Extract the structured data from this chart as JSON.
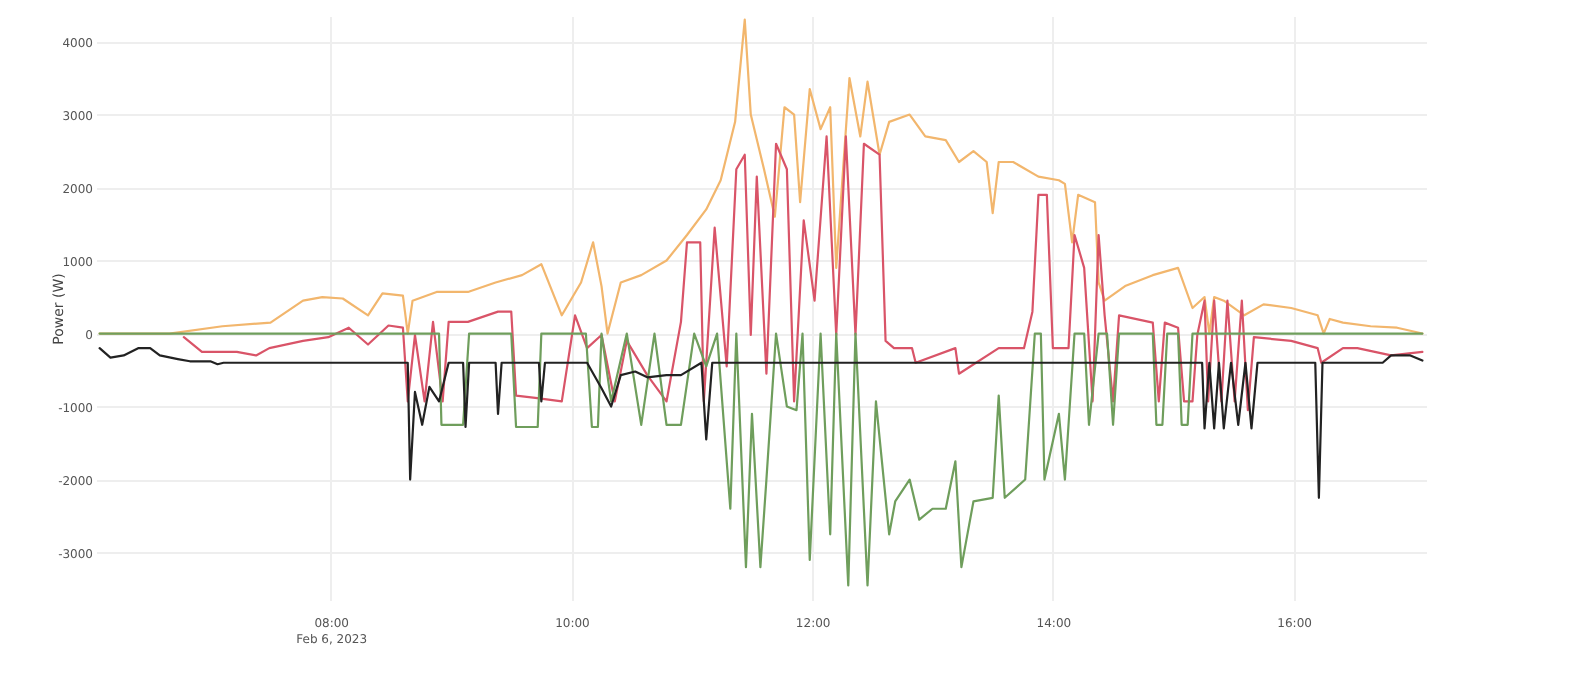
{
  "chart_data": {
    "type": "line",
    "ylabel": "Power (W)",
    "grid": true,
    "legend": false,
    "marker": "none",
    "line_style": "solid",
    "xlim": [
      6.05,
      17.1
    ],
    "xticks": [
      {
        "value": 8,
        "label": "08:00\nFeb 6, 2023"
      },
      {
        "value": 10,
        "label": "10:00"
      },
      {
        "value": 12,
        "label": "12:00"
      },
      {
        "value": 14,
        "label": "14:00"
      },
      {
        "value": 16,
        "label": "16:00"
      }
    ],
    "ylim": [
      -3650,
      4350
    ],
    "yticks": [
      -3000,
      -2000,
      -1000,
      0,
      1000,
      2000,
      3000,
      4000
    ],
    "series": [
      {
        "color": "#f2b66d",
        "x": [
          6.08,
          6.66,
          7.1,
          7.5,
          7.77,
          7.93,
          8.1,
          8.31,
          8.43,
          8.6,
          8.64,
          8.68,
          8.88,
          9.14,
          9.37,
          9.59,
          9.75,
          9.92,
          10.08,
          10.18,
          10.25,
          10.3,
          10.41,
          10.58,
          10.79,
          10.96,
          11.12,
          11.24,
          11.36,
          11.44,
          11.49,
          11.6,
          11.69,
          11.77,
          11.85,
          11.9,
          11.98,
          12.07,
          12.15,
          12.2,
          12.31,
          12.4,
          12.46,
          12.56,
          12.64,
          12.81,
          12.94,
          13.11,
          13.22,
          13.34,
          13.45,
          13.5,
          13.55,
          13.67,
          13.88,
          14.05,
          14.1,
          14.16,
          14.21,
          14.35,
          14.38,
          14.43,
          14.6,
          14.83,
          15.04,
          15.16,
          15.26,
          15.3,
          15.34,
          15.42,
          15.59,
          15.75,
          15.98,
          16.2,
          16.25,
          16.3,
          16.41,
          16.64,
          16.86,
          17.07
        ],
        "values": [
          0,
          0,
          100,
          150,
          450,
          500,
          480,
          250,
          550,
          520,
          0,
          450,
          570,
          570,
          700,
          800,
          950,
          250,
          700,
          1250,
          650,
          0,
          700,
          800,
          1000,
          1350,
          1700,
          2100,
          2900,
          4300,
          3000,
          2250,
          1600,
          3100,
          3000,
          1800,
          3350,
          2800,
          3100,
          900,
          3500,
          2700,
          3450,
          2450,
          2900,
          3000,
          2700,
          2650,
          2350,
          2500,
          2350,
          1650,
          2350,
          2350,
          2150,
          2100,
          2050,
          1250,
          1900,
          1800,
          700,
          450,
          650,
          800,
          900,
          350,
          500,
          0,
          500,
          450,
          250,
          400,
          350,
          250,
          0,
          200,
          150,
          100,
          80,
          0
        ]
      },
      {
        "color": "#d95468",
        "x": [
          6.78,
          6.93,
          7.22,
          7.38,
          7.49,
          7.77,
          7.98,
          8.15,
          8.31,
          8.48,
          8.6,
          8.64,
          8.7,
          8.78,
          8.85,
          8.93,
          8.98,
          9.14,
          9.39,
          9.5,
          9.54,
          9.7,
          9.92,
          10.03,
          10.13,
          10.25,
          10.36,
          10.46,
          10.63,
          10.79,
          10.91,
          10.96,
          11.07,
          11.1,
          11.19,
          11.29,
          11.37,
          11.44,
          11.49,
          11.54,
          11.62,
          11.7,
          11.79,
          11.85,
          11.93,
          12.02,
          12.12,
          12.2,
          12.28,
          12.36,
          12.43,
          12.56,
          12.61,
          12.68,
          12.83,
          12.86,
          13.19,
          13.22,
          13.55,
          13.76,
          13.83,
          13.88,
          13.95,
          14.0,
          14.13,
          14.18,
          14.26,
          14.33,
          14.38,
          14.43,
          14.5,
          14.55,
          14.83,
          14.88,
          14.93,
          15.04,
          15.09,
          15.16,
          15.2,
          15.26,
          15.29,
          15.34,
          15.4,
          15.45,
          15.51,
          15.57,
          15.62,
          15.67,
          15.98,
          16.2,
          16.23,
          16.41,
          16.53,
          16.81,
          17.07
        ],
        "values": [
          -50,
          -250,
          -250,
          -300,
          -200,
          -100,
          -50,
          80,
          -150,
          110,
          80,
          -930,
          -20,
          -930,
          160,
          -930,
          160,
          160,
          300,
          300,
          -850,
          -880,
          -930,
          250,
          -200,
          -20,
          -930,
          -100,
          -570,
          -930,
          160,
          1250,
          1250,
          -930,
          1450,
          -450,
          2250,
          2450,
          -20,
          2150,
          -550,
          2600,
          2250,
          -930,
          1550,
          450,
          2700,
          -20,
          2700,
          -20,
          2600,
          2450,
          -100,
          -200,
          -200,
          -400,
          -200,
          -550,
          -200,
          -200,
          300,
          1900,
          1900,
          -200,
          -200,
          1350,
          900,
          -930,
          1350,
          250,
          -930,
          250,
          150,
          -930,
          150,
          80,
          -930,
          -930,
          -20,
          450,
          -930,
          450,
          -930,
          450,
          -930,
          450,
          -1050,
          -50,
          -100,
          -200,
          -400,
          -200,
          -200,
          -300,
          -250
        ]
      },
      {
        "color": "#6f9e5c",
        "x": [
          6.08,
          8.9,
          8.92,
          9.0,
          9.1,
          9.15,
          9.5,
          9.54,
          9.72,
          9.75,
          9.9,
          9.95,
          10.12,
          10.17,
          10.22,
          10.25,
          10.33,
          10.46,
          10.58,
          10.69,
          10.79,
          10.91,
          11.02,
          11.12,
          11.21,
          11.32,
          11.37,
          11.45,
          11.5,
          11.57,
          11.62,
          11.7,
          11.79,
          11.87,
          11.92,
          11.98,
          12.07,
          12.15,
          12.2,
          12.3,
          12.36,
          12.46,
          12.53,
          12.64,
          12.69,
          12.81,
          12.89,
          13.0,
          13.11,
          13.19,
          13.24,
          13.34,
          13.5,
          13.55,
          13.6,
          13.77,
          13.85,
          13.9,
          13.93,
          14.05,
          14.1,
          14.18,
          14.26,
          14.3,
          14.38,
          14.45,
          14.5,
          14.55,
          14.83,
          14.86,
          14.91,
          14.95,
          15.04,
          15.07,
          15.12,
          15.16,
          17.07
        ],
        "values": [
          0,
          0,
          -1250,
          -1250,
          -1250,
          0,
          0,
          -1280,
          -1280,
          0,
          0,
          0,
          0,
          -1280,
          -1280,
          0,
          -930,
          0,
          -1250,
          0,
          -1250,
          -1250,
          0,
          -450,
          0,
          -2400,
          0,
          -3200,
          -1100,
          -3200,
          -2000,
          0,
          -1000,
          -1050,
          0,
          -3100,
          0,
          -2750,
          0,
          -3450,
          0,
          -3450,
          -930,
          -2750,
          -2300,
          -2000,
          -2550,
          -2400,
          -2400,
          -1750,
          -3200,
          -2300,
          -2250,
          -850,
          -2250,
          -2000,
          0,
          0,
          -2000,
          -1100,
          -2000,
          0,
          0,
          -1250,
          0,
          0,
          -1250,
          0,
          0,
          -1250,
          -1250,
          0,
          0,
          -1250,
          -1250,
          0,
          0
        ]
      },
      {
        "color": "#222222",
        "x": [
          6.08,
          6.17,
          6.28,
          6.4,
          6.5,
          6.58,
          6.73,
          6.83,
          7.0,
          7.06,
          7.11,
          8.64,
          8.66,
          8.7,
          8.76,
          8.82,
          8.9,
          8.98,
          9.1,
          9.12,
          9.15,
          9.37,
          9.39,
          9.42,
          9.73,
          9.75,
          9.78,
          10.13,
          10.25,
          10.33,
          10.41,
          10.53,
          10.63,
          10.79,
          10.91,
          11.08,
          11.12,
          11.17,
          15.24,
          15.26,
          15.3,
          15.34,
          15.38,
          15.42,
          15.48,
          15.54,
          15.6,
          15.65,
          15.7,
          16.18,
          16.21,
          16.24,
          16.74,
          16.81,
          16.97,
          17.07
        ],
        "values": [
          -200,
          -330,
          -300,
          -200,
          -200,
          -300,
          -350,
          -380,
          -380,
          -420,
          -400,
          -400,
          -2000,
          -800,
          -1250,
          -730,
          -930,
          -400,
          -400,
          -1280,
          -400,
          -400,
          -1100,
          -400,
          -400,
          -930,
          -400,
          -400,
          -750,
          -1000,
          -570,
          -520,
          -600,
          -570,
          -570,
          -400,
          -1450,
          -400,
          -400,
          -1300,
          -400,
          -1300,
          -400,
          -1300,
          -400,
          -1250,
          -400,
          -1300,
          -400,
          -400,
          -2250,
          -400,
          -400,
          -300,
          -300,
          -370
        ]
      }
    ]
  }
}
